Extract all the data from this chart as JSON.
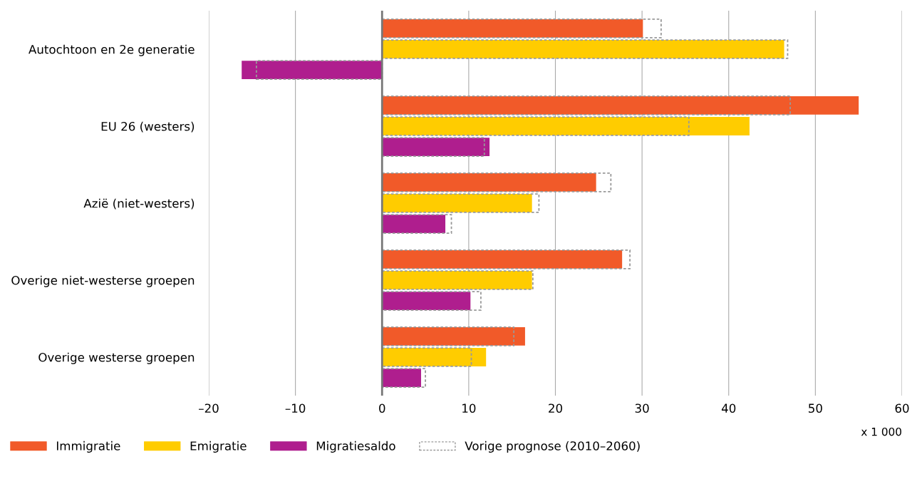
{
  "chart_data": {
    "type": "bar",
    "orientation": "horizontal",
    "categories": [
      "Autochtoon en 2e generatie",
      "EU 26 (westers)",
      "Azië (niet-westers)",
      "Overige niet-westerse groepen",
      "Overige westerse groepen"
    ],
    "series": [
      {
        "name": "Immigratie",
        "color": "#f15a29",
        "values": [
          30.1,
          55.0,
          24.7,
          27.7,
          16.5
        ]
      },
      {
        "name": "Emigratie",
        "color": "#ffcc00",
        "values": [
          46.4,
          42.4,
          17.3,
          17.3,
          12.0
        ]
      },
      {
        "name": "Migratiesaldo",
        "color": "#af1e8e",
        "values": [
          -16.2,
          12.4,
          7.3,
          10.2,
          4.5
        ]
      },
      {
        "name": "Vorige prognose (2010–2060)",
        "color": "#999999",
        "line_style": "dashed",
        "values": [
          32.2,
          47.1,
          26.4,
          28.6,
          15.2
        ]
      },
      {
        "color": "#999999",
        "line_style": "dashed",
        "values": [
          46.8,
          35.4,
          18.1,
          17.4,
          10.3
        ]
      },
      {
        "color": "#999999",
        "line_style": "dashed",
        "values": [
          -14.5,
          11.8,
          8.0,
          11.4,
          5.0
        ]
      }
    ],
    "xlim": [
      -20,
      60
    ],
    "xticks": [
      {
        "value": -20,
        "label": "–20"
      },
      {
        "value": -10,
        "label": "–10"
      },
      0,
      10,
      20,
      30,
      40,
      50,
      60
    ],
    "grid": "x",
    "legend": "bottom left",
    "annotations": [
      "x 1 000"
    ]
  }
}
